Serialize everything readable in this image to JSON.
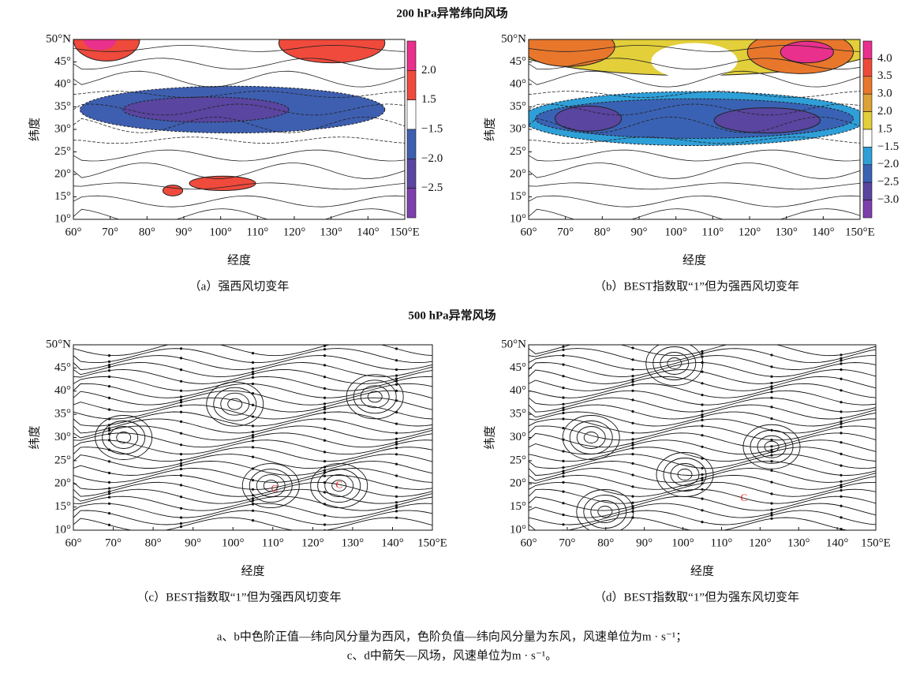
{
  "sections": [
    {
      "title": "200 hPa异常纬向风场",
      "panels": [
        {
          "y_ticks": [
            "50°N",
            "45°",
            "40°",
            "35°",
            "30°",
            "25°",
            "20°",
            "15°",
            "10°"
          ],
          "x_ticks": [
            "60°",
            "70°",
            "80°",
            "90°",
            "100°",
            "110°",
            "120°",
            "130°",
            "140°",
            "150°E"
          ],
          "y_label": "纬度",
          "x_label": "经度",
          "caption": "（a）强西风切变年",
          "colorbar": [
            "2.0",
            "1.5",
            "−1.5",
            "−2.0",
            "−2.5"
          ]
        },
        {
          "y_ticks": [
            "50°N",
            "45°",
            "40°",
            "35°",
            "30°",
            "25°",
            "20°",
            "15°",
            "10°"
          ],
          "x_ticks": [
            "60°",
            "70°",
            "80°",
            "90°",
            "100°",
            "110°",
            "120°",
            "130°",
            "140°",
            "150°E"
          ],
          "y_label": "纬度",
          "x_label": "经度",
          "caption": "（b）BEST指数取“1”但为强西风切变年",
          "colorbar": [
            "4.0",
            "3.5",
            "3.0",
            "2.0",
            "1.5",
            "−1.5",
            "−2.0",
            "−2.5",
            "−3.0"
          ]
        }
      ]
    },
    {
      "title": "500 hPa异常风场",
      "panels": [
        {
          "y_ticks": [
            "50°N",
            "45°",
            "40°",
            "35°",
            "30°",
            "25°",
            "20°",
            "15°",
            "10°"
          ],
          "x_ticks": [
            "60°",
            "70°",
            "80°",
            "90°",
            "100°",
            "110°",
            "120°",
            "130°",
            "140°",
            "150°E"
          ],
          "y_label": "纬度",
          "x_label": "经度",
          "caption": "（c）BEST指数取“1”但为强西风切变年",
          "markers": [
            "C",
            "C"
          ]
        },
        {
          "y_ticks": [
            "50°N",
            "45°",
            "40°",
            "35°",
            "30°",
            "25°",
            "20°",
            "15°",
            "10°"
          ],
          "x_ticks": [
            "60°",
            "70°",
            "80°",
            "90°",
            "100°",
            "110°",
            "120°",
            "130°",
            "140°",
            "150°E"
          ],
          "y_label": "纬度",
          "x_label": "经度",
          "caption": "（d）BEST指数取“1”但为强东风切变年",
          "markers": [
            "C"
          ]
        }
      ]
    }
  ],
  "notes": [
    "a、b中色阶正值—纬向风分量为西风，色阶负值—纬向风分量为东风，风速单位为m · s⁻¹；",
    "c、d中箭矢—风场，风速单位为m · s⁻¹。"
  ]
}
